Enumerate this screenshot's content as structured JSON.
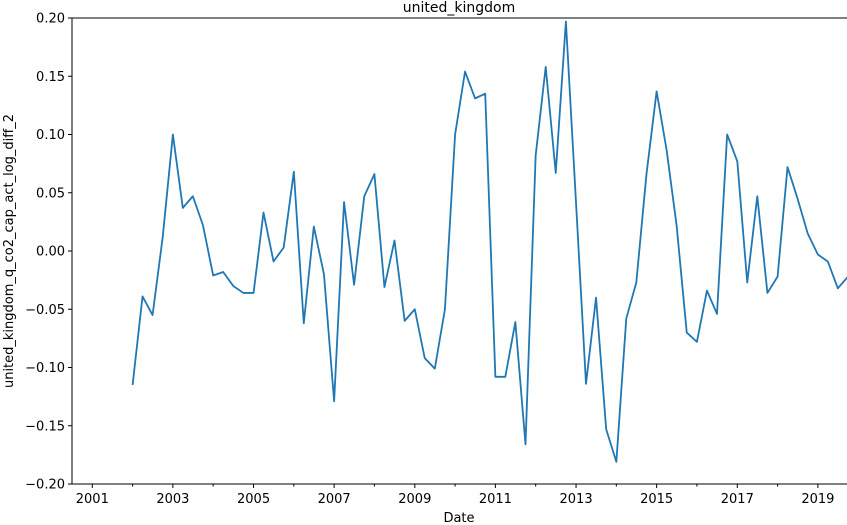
{
  "chart_data": {
    "type": "line",
    "title": "united_kingdom",
    "xlabel": "Date",
    "ylabel": "united_kingdom_q_co2_cap_act_log_diff_2",
    "xlim": [
      "2000-07-01",
      "2019-10-01"
    ],
    "ylim": [
      -0.2,
      0.2
    ],
    "grid": false,
    "x_ticks": [
      "2001",
      "2003",
      "2005",
      "2007",
      "2009",
      "2011",
      "2013",
      "2015",
      "2017",
      "2019"
    ],
    "y_ticks": [
      "−0.20",
      "−0.15",
      "−0.10",
      "−0.05",
      "0.00",
      "0.05",
      "0.10",
      "0.15",
      "0.20"
    ],
    "y_tick_values": [
      -0.2,
      -0.15,
      -0.1,
      -0.05,
      0.0,
      0.05,
      0.1,
      0.15,
      0.2
    ],
    "series": [
      {
        "color": "#1f77b4",
        "x": [
          "2002-01-01",
          "2002-04-01",
          "2002-07-01",
          "2002-10-01",
          "2003-01-01",
          "2003-04-01",
          "2003-07-01",
          "2003-10-01",
          "2004-01-01",
          "2004-04-01",
          "2004-07-01",
          "2004-10-01",
          "2005-01-01",
          "2005-04-01",
          "2005-07-01",
          "2005-10-01",
          "2006-01-01",
          "2006-04-01",
          "2006-07-01",
          "2006-10-01",
          "2007-01-01",
          "2007-04-01",
          "2007-07-01",
          "2007-10-01",
          "2008-01-01",
          "2008-04-01",
          "2008-07-01",
          "2008-10-01",
          "2009-01-01",
          "2009-04-01",
          "2009-07-01",
          "2009-10-01",
          "2010-01-01",
          "2010-04-01",
          "2010-07-01",
          "2010-10-01",
          "2011-01-01",
          "2011-04-01",
          "2011-07-01",
          "2011-10-01",
          "2012-01-01",
          "2012-04-01",
          "2012-07-01",
          "2012-10-01",
          "2013-01-01",
          "2013-04-01",
          "2013-07-01",
          "2013-10-01",
          "2014-01-01",
          "2014-04-01",
          "2014-07-01",
          "2014-10-01",
          "2015-01-01",
          "2015-04-01",
          "2015-07-01",
          "2015-10-01",
          "2016-01-01",
          "2016-04-01",
          "2016-07-01",
          "2016-10-01",
          "2017-01-01",
          "2017-04-01",
          "2017-07-01",
          "2017-10-01",
          "2018-01-01",
          "2018-04-01",
          "2018-07-01",
          "2018-10-01",
          "2019-01-01",
          "2019-04-01",
          "2019-07-01",
          "2019-10-01"
        ],
        "values": [
          -0.115,
          -0.039,
          -0.055,
          0.012,
          0.1,
          0.037,
          0.047,
          0.022,
          -0.021,
          -0.018,
          -0.03,
          -0.036,
          -0.036,
          0.033,
          -0.009,
          0.003,
          0.068,
          -0.062,
          0.021,
          -0.02,
          -0.129,
          0.042,
          -0.029,
          0.047,
          0.066,
          -0.031,
          0.009,
          -0.06,
          -0.05,
          -0.092,
          -0.101,
          -0.05,
          0.1,
          0.154,
          0.131,
          0.135,
          -0.108,
          -0.108,
          -0.061,
          -0.166,
          0.082,
          0.158,
          0.067,
          0.197,
          0.041,
          -0.114,
          -0.04,
          -0.153,
          -0.181,
          -0.058,
          -0.027,
          0.066,
          0.137,
          0.087,
          0.022,
          -0.07,
          -0.078,
          -0.034,
          -0.054,
          0.1,
          0.077,
          -0.027,
          0.047,
          -0.036,
          -0.022,
          0.072,
          0.045,
          0.015,
          -0.003,
          -0.009,
          -0.032,
          -0.022
        ]
      }
    ]
  }
}
